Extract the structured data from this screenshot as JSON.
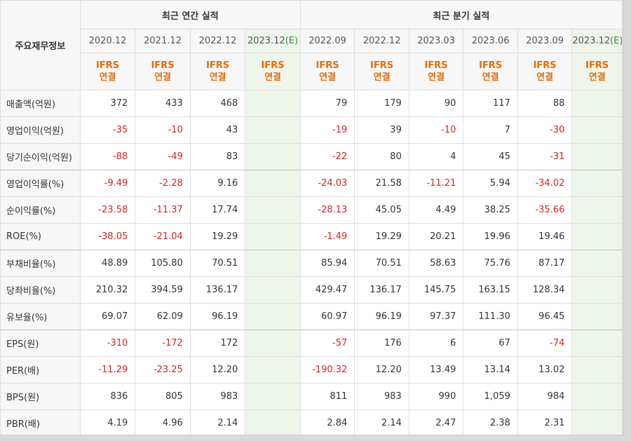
{
  "header": {
    "label": "주요재무정보",
    "annual_title": "최근 연간 실적",
    "quarter_title": "최근 분기 실적",
    "periods": [
      "2020.12",
      "2021.12",
      "2022.12",
      "2023.12",
      "2022.09",
      "2022.12",
      "2023.03",
      "2023.06",
      "2023.09",
      "2023.12"
    ],
    "estimate_mark": "(E)",
    "ifrs_line1": "IFRS",
    "ifrs_line2": "연결"
  },
  "rows": [
    {
      "label": "매출액(억원)",
      "values": [
        "372",
        "433",
        "468",
        "",
        "79",
        "179",
        "90",
        "117",
        "88",
        ""
      ]
    },
    {
      "label": "영업이익(억원)",
      "values": [
        "-35",
        "-10",
        "43",
        "",
        "-19",
        "39",
        "-10",
        "7",
        "-30",
        ""
      ]
    },
    {
      "label": "당기순이익(억원)",
      "values": [
        "-88",
        "-49",
        "83",
        "",
        "-22",
        "80",
        "4",
        "45",
        "-31",
        ""
      ]
    },
    {
      "label": "영업이익률(%)",
      "values": [
        "-9.49",
        "-2.28",
        "9.16",
        "",
        "-24.03",
        "21.58",
        "-11.21",
        "5.94",
        "-34.02",
        ""
      ]
    },
    {
      "label": "순이익률(%)",
      "values": [
        "-23.58",
        "-11.37",
        "17.74",
        "",
        "-28.13",
        "45.05",
        "4.49",
        "38.25",
        "-35.66",
        ""
      ]
    },
    {
      "label": "ROE(%)",
      "values": [
        "-38.05",
        "-21.04",
        "19.29",
        "",
        "-1.49",
        "19.29",
        "20.21",
        "19.96",
        "19.46",
        ""
      ]
    },
    {
      "label": "부채비율(%)",
      "values": [
        "48.89",
        "105.80",
        "70.51",
        "",
        "85.94",
        "70.51",
        "58.63",
        "75.76",
        "87.17",
        ""
      ]
    },
    {
      "label": "당좌비율(%)",
      "values": [
        "210.32",
        "394.59",
        "136.17",
        "",
        "429.47",
        "136.17",
        "145.75",
        "163.15",
        "128.34",
        ""
      ]
    },
    {
      "label": "유보율(%)",
      "values": [
        "69.07",
        "62.09",
        "96.19",
        "",
        "60.97",
        "96.19",
        "97.37",
        "111.30",
        "96.45",
        ""
      ]
    },
    {
      "label": "EPS(원)",
      "values": [
        "-310",
        "-172",
        "172",
        "",
        "-57",
        "176",
        "6",
        "67",
        "-74",
        ""
      ]
    },
    {
      "label": "PER(배)",
      "values": [
        "-11.29",
        "-23.25",
        "12.20",
        "",
        "-190.32",
        "12.20",
        "13.49",
        "13.14",
        "13.02",
        ""
      ]
    },
    {
      "label": "BPS(원)",
      "values": [
        "836",
        "805",
        "983",
        "",
        "811",
        "983",
        "990",
        "1,059",
        "984",
        ""
      ]
    },
    {
      "label": "PBR(배)",
      "values": [
        "4.19",
        "4.96",
        "2.14",
        "",
        "2.84",
        "2.14",
        "2.47",
        "2.38",
        "2.31",
        ""
      ]
    }
  ],
  "colors": {
    "negative": "#d4241e",
    "ifrs": "#e66a0a",
    "estimate_bg": "#eef6ec",
    "estimate_mark": "#3a8a3a"
  }
}
